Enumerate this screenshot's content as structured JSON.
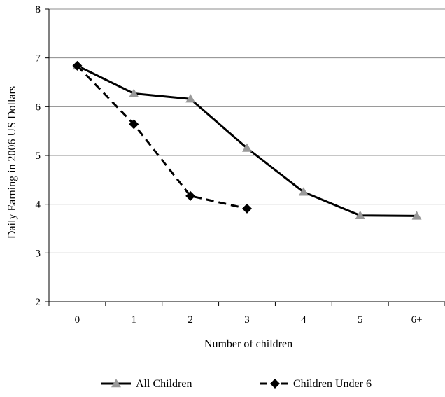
{
  "chart_data": {
    "type": "line",
    "title": "",
    "xlabel": "Number of children",
    "ylabel": "Daily Earning in 2006 US Dollars",
    "categories": [
      "0",
      "1",
      "2",
      "3",
      "4",
      "5",
      "6+"
    ],
    "ylim": [
      2,
      8
    ],
    "yticks": [
      2,
      3,
      4,
      5,
      6,
      7,
      8
    ],
    "grid": "horizontal",
    "legend_position": "bottom",
    "series": [
      {
        "name": "All Children",
        "values": [
          6.84,
          6.27,
          6.16,
          5.15,
          4.25,
          3.77,
          3.76
        ],
        "color": "#000000",
        "marker_color": "#999999",
        "marker": "triangle",
        "line_style": "solid"
      },
      {
        "name": "Children Under 6",
        "values": [
          6.84,
          5.64,
          4.17,
          3.91,
          null,
          null,
          null
        ],
        "color": "#000000",
        "marker_color": "#000000",
        "marker": "diamond",
        "line_style": "dashed"
      }
    ]
  }
}
